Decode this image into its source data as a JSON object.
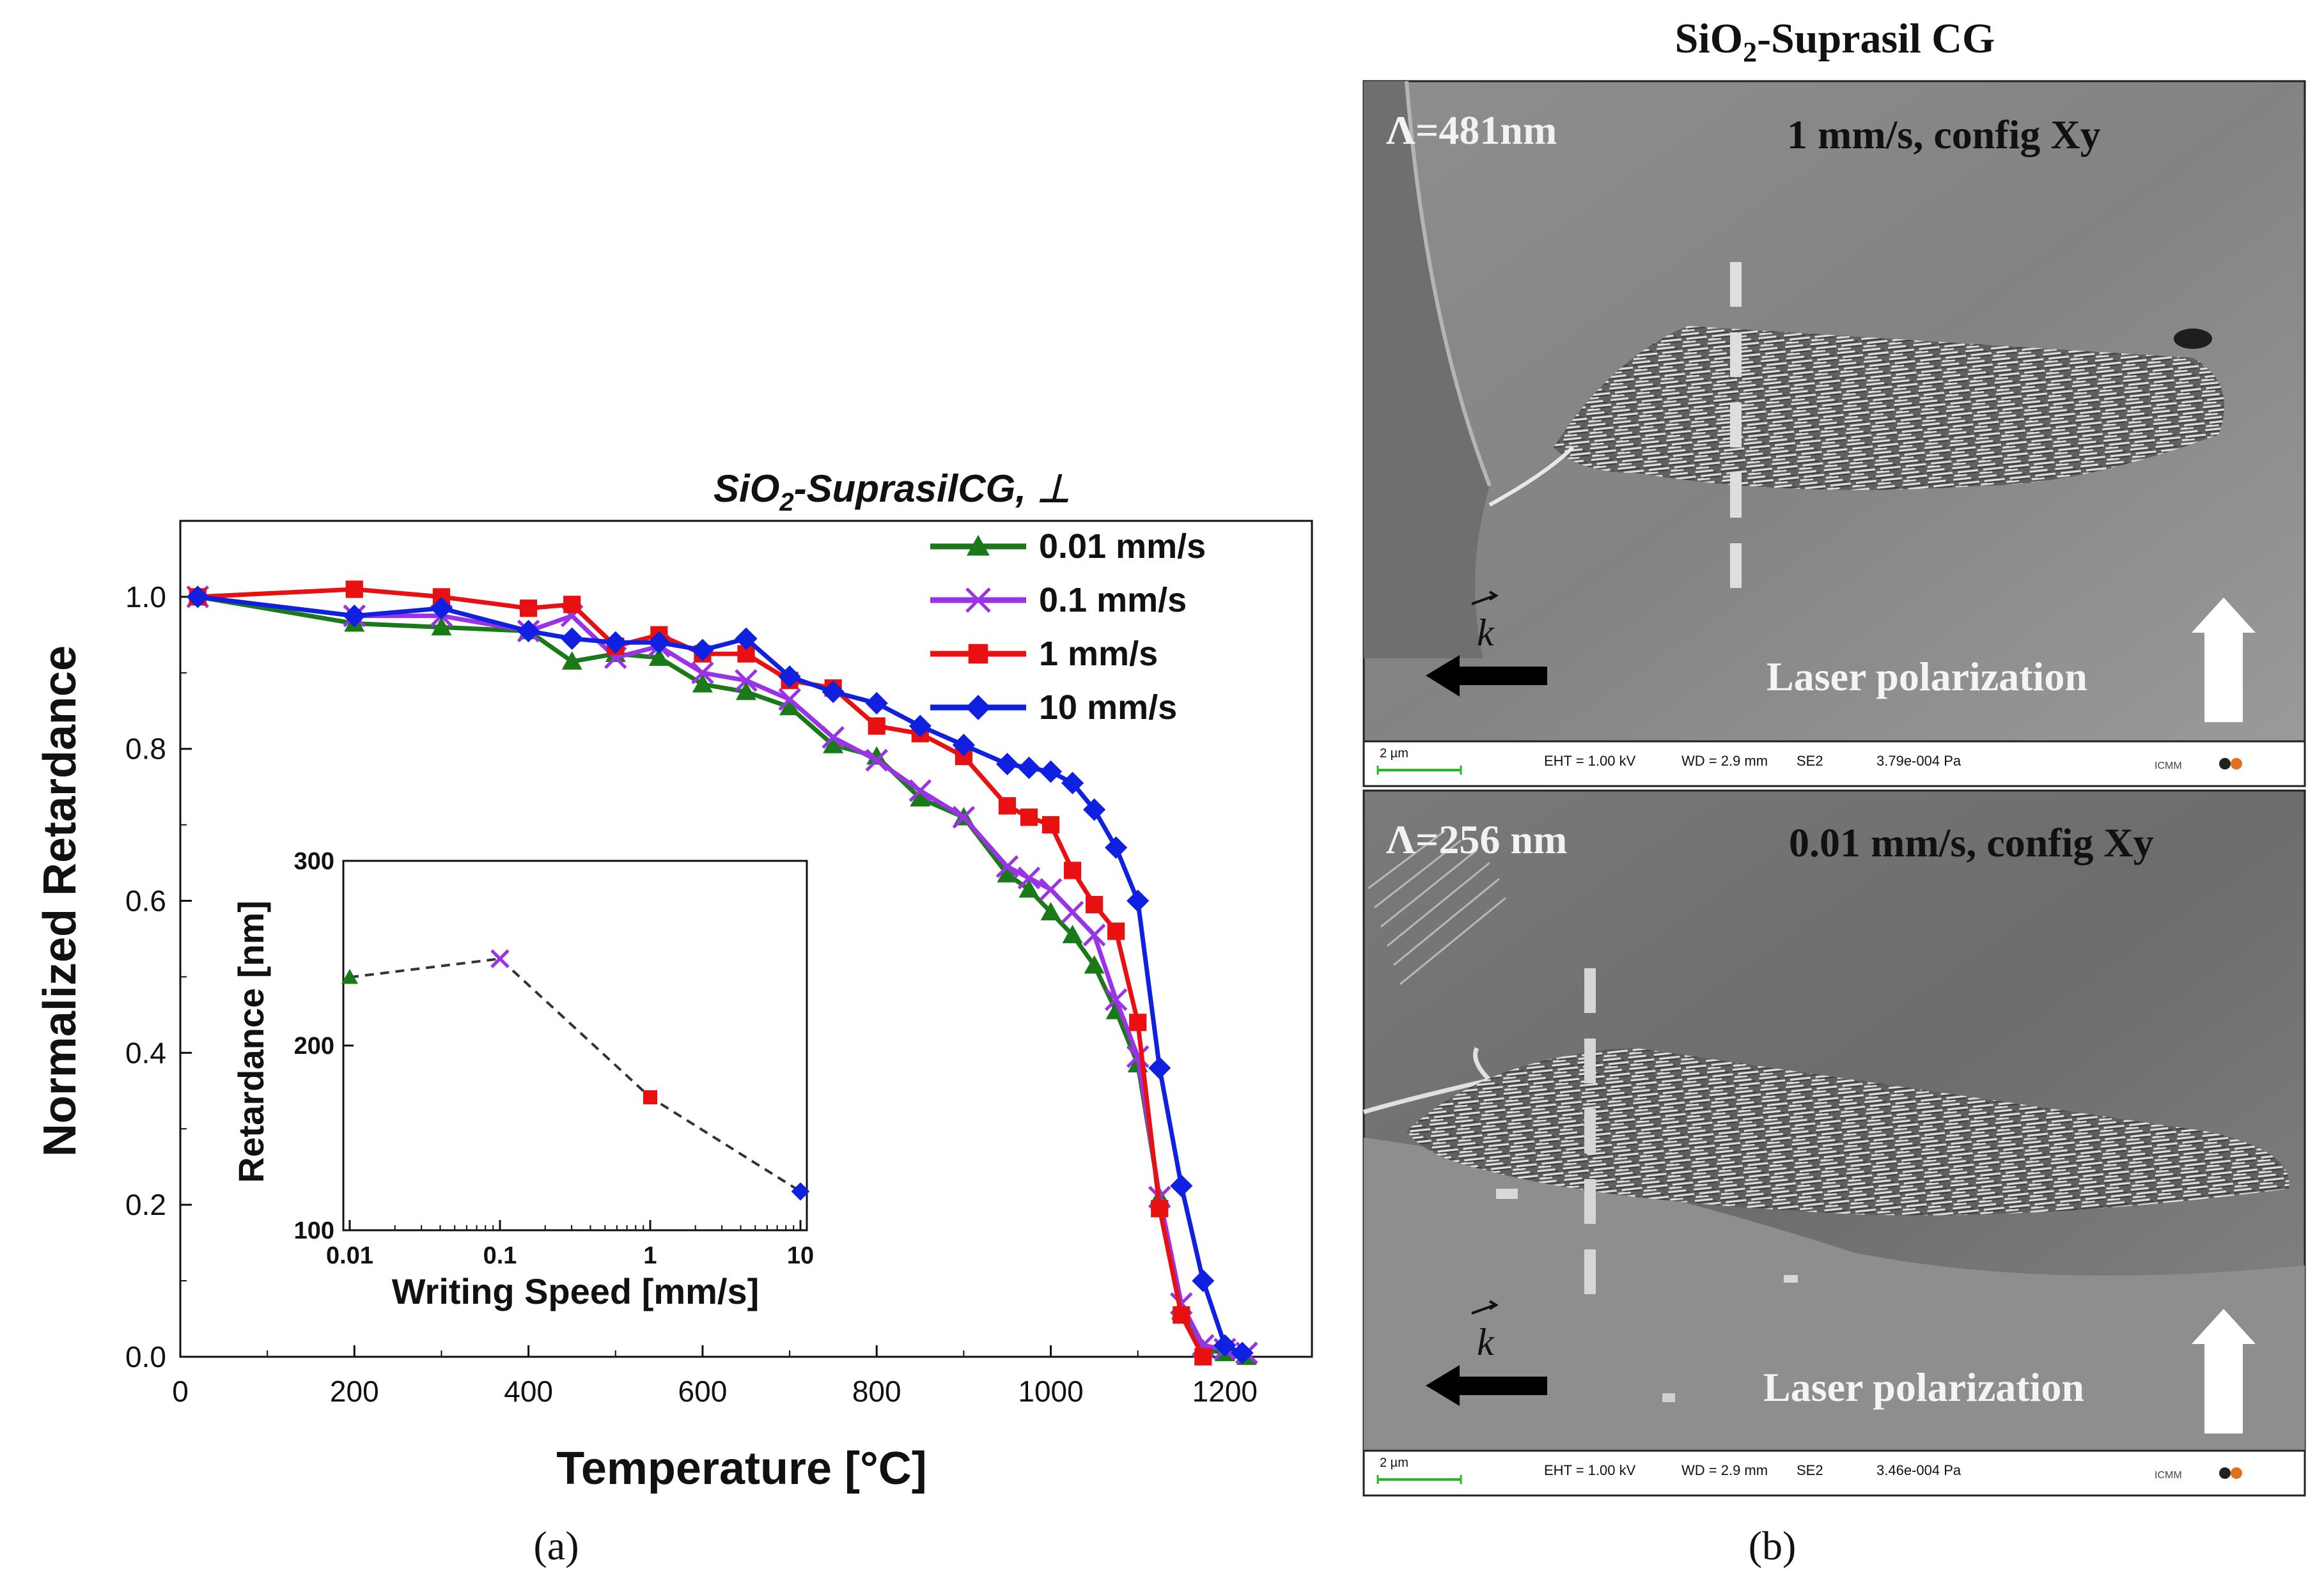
{
  "chart_data": [
    {
      "type": "line",
      "title": "SiO",
      "title_sub": "2",
      "title_rest": "-SuprasilCG, ⊥",
      "xlabel": "Temperature [°C]",
      "ylabel": "Normalized Retardance",
      "xlim": [
        0,
        1300
      ],
      "ylim": [
        0,
        1.1
      ],
      "xticks": [
        "0",
        "200",
        "400",
        "600",
        "800",
        "1000",
        "1200"
      ],
      "yticks": [
        "0.0",
        "0.2",
        "0.4",
        "0.6",
        "0.8",
        "1.0"
      ],
      "legend_position": "top-right",
      "series": [
        {
          "name": "0.01 mm/s",
          "color": "#1a7a1a",
          "marker": "triangle",
          "x": [
            20,
            200,
            300,
            400,
            450,
            500,
            550,
            600,
            650,
            700,
            750,
            800,
            850,
            900,
            950,
            975,
            1000,
            1025,
            1050,
            1075,
            1100,
            1125,
            1150,
            1175,
            1200,
            1225
          ],
          "y": [
            1.0,
            0.965,
            0.96,
            0.955,
            0.915,
            0.925,
            0.92,
            0.885,
            0.875,
            0.855,
            0.805,
            0.79,
            0.735,
            0.71,
            0.635,
            0.615,
            0.585,
            0.555,
            0.515,
            0.455,
            0.385,
            0.21,
            0.06,
            0.01,
            0.005,
            0.0
          ]
        },
        {
          "name": "0.1 mm/s",
          "color": "#9a33e6",
          "marker": "cross",
          "x": [
            20,
            200,
            300,
            400,
            450,
            500,
            550,
            600,
            650,
            700,
            750,
            800,
            850,
            900,
            950,
            975,
            1000,
            1025,
            1050,
            1075,
            1100,
            1125,
            1150,
            1175,
            1200,
            1225
          ],
          "y": [
            1.0,
            0.975,
            0.975,
            0.955,
            0.975,
            0.92,
            0.935,
            0.9,
            0.89,
            0.865,
            0.815,
            0.785,
            0.745,
            0.71,
            0.645,
            0.63,
            0.615,
            0.585,
            0.555,
            0.47,
            0.395,
            0.21,
            0.07,
            0.015,
            0.01,
            0.005
          ]
        },
        {
          "name": "1 mm/s",
          "color": "#e81010",
          "marker": "square",
          "x": [
            20,
            200,
            300,
            400,
            450,
            500,
            550,
            600,
            650,
            700,
            750,
            800,
            850,
            900,
            950,
            975,
            1000,
            1025,
            1050,
            1075,
            1100,
            1125,
            1150,
            1175
          ],
          "y": [
            1.0,
            1.01,
            1.0,
            0.985,
            0.99,
            0.935,
            0.95,
            0.925,
            0.925,
            0.89,
            0.88,
            0.83,
            0.82,
            0.79,
            0.725,
            0.71,
            0.7,
            0.64,
            0.595,
            0.56,
            0.44,
            0.195,
            0.055,
            0.0
          ]
        },
        {
          "name": "10 mm/s",
          "color": "#1020e0",
          "marker": "diamond",
          "x": [
            20,
            200,
            300,
            400,
            450,
            500,
            550,
            600,
            650,
            700,
            750,
            800,
            850,
            900,
            950,
            975,
            1000,
            1025,
            1050,
            1075,
            1100,
            1125,
            1150,
            1175,
            1200,
            1220
          ],
          "y": [
            1.0,
            0.975,
            0.985,
            0.955,
            0.945,
            0.94,
            0.94,
            0.93,
            0.945,
            0.895,
            0.875,
            0.86,
            0.83,
            0.805,
            0.78,
            0.775,
            0.77,
            0.755,
            0.72,
            0.67,
            0.6,
            0.38,
            0.225,
            0.1,
            0.015,
            0.005
          ]
        }
      ]
    },
    {
      "type": "scatter",
      "xscale": "log",
      "xlabel": "Writing Speed [mm/s]",
      "ylabel": "Retardance [nm]",
      "xlim": [
        0.01,
        10
      ],
      "ylim": [
        100,
        300
      ],
      "xticks": [
        "0.01",
        "0.1",
        "1",
        "10"
      ],
      "yticks": [
        "100",
        "200",
        "300"
      ],
      "connector": "dashed",
      "points": [
        {
          "x": 0.01,
          "y": 237,
          "color": "#1a7a1a",
          "marker": "triangle"
        },
        {
          "x": 0.1,
          "y": 247,
          "color": "#9a33e6",
          "marker": "cross"
        },
        {
          "x": 1,
          "y": 172,
          "color": "#e81010",
          "marker": "square"
        },
        {
          "x": 10,
          "y": 121,
          "color": "#1020e0",
          "marker": "diamond"
        }
      ]
    }
  ],
  "panel_labels": {
    "a": "(a)",
    "b": "(b)"
  },
  "panel_b": {
    "title": "SiO",
    "title_sub": "2",
    "title_rest": "-Suprasil CG",
    "top": {
      "period": "Λ=481nm",
      "condition": "1 mm/s, config Xy",
      "k_label": "k",
      "polarization_label": "Laser polarization",
      "scale": "2 µm",
      "eht": "EHT =  1.00 kV",
      "wd": "WD =  2.9 mm",
      "detector": "SE2",
      "pressure": "3.79e-004 Pa",
      "logo": "ICMM"
    },
    "bottom": {
      "period": "Λ=256 nm",
      "condition": "0.01 mm/s, config Xy",
      "k_label": "k",
      "polarization_label": "Laser polarization",
      "scale": "2 µm",
      "eht": "EHT =  1.00 kV",
      "wd": "WD =  2.9 mm",
      "detector": "SE2",
      "pressure": "3.46e-004 Pa",
      "logo": "ICMM"
    }
  }
}
